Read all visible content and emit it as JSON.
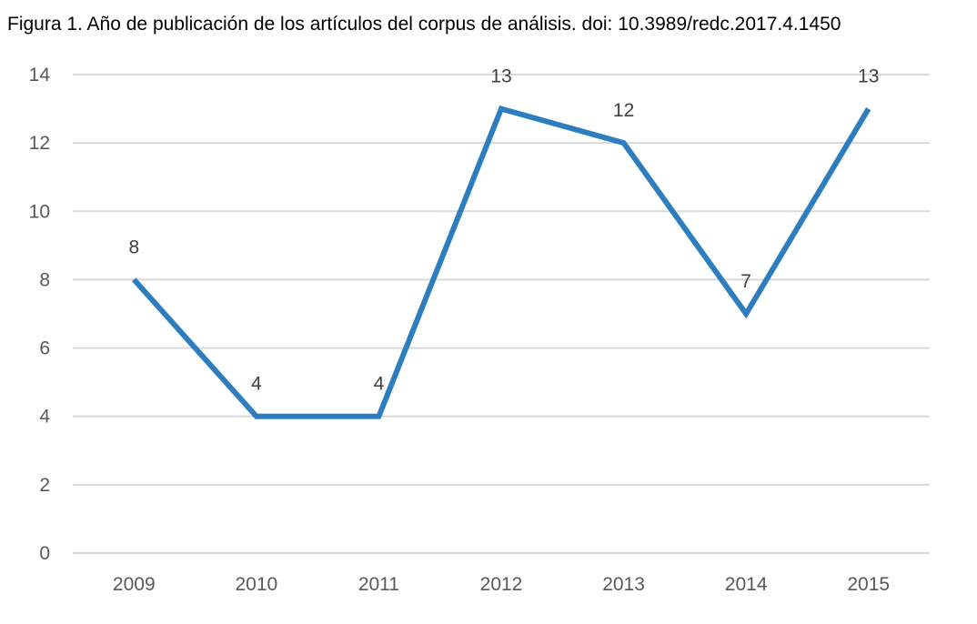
{
  "figure": {
    "caption": "Figura 1. Año de publicación de los artículos del corpus de análisis. doi: 10.3989/redc.2017.4.1450"
  },
  "chart_data": {
    "type": "line",
    "title": "",
    "xlabel": "",
    "ylabel": "",
    "categories": [
      "2009",
      "2010",
      "2011",
      "2012",
      "2013",
      "2014",
      "2015"
    ],
    "series": [
      {
        "values": [
          8,
          4,
          4,
          13,
          12,
          7,
          13
        ],
        "color": "#2E7EBF"
      }
    ],
    "ylim": [
      0,
      14
    ],
    "yticks": [
      0,
      2,
      4,
      6,
      8,
      10,
      12,
      14
    ],
    "grid": true,
    "gridColor": "#D9D9D9",
    "data_labels": true,
    "legend": "none"
  }
}
